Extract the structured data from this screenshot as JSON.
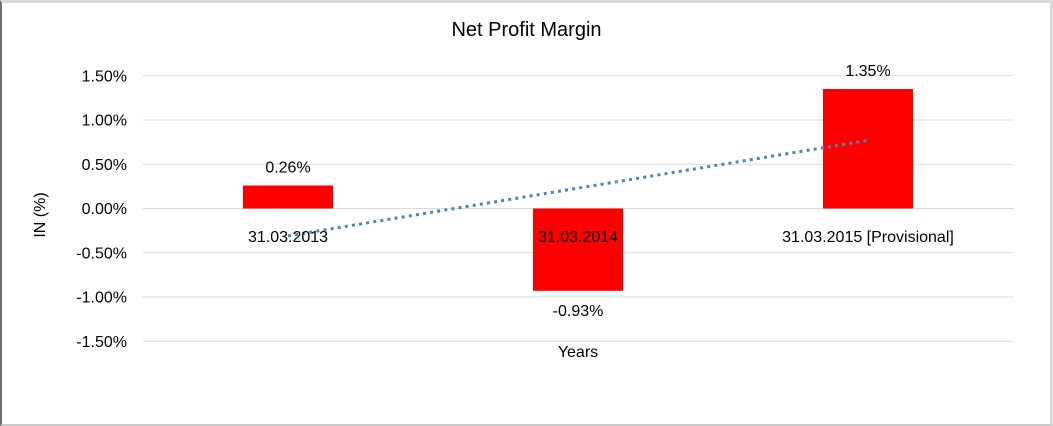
{
  "chart_data": {
    "type": "bar",
    "title": "Net Profit Margin",
    "categories": [
      "31.03.2013",
      "31.03.2014",
      "31.03.2015 [Provisional]"
    ],
    "values": [
      0.26,
      -0.93,
      1.35
    ],
    "data_labels": [
      "0.26%",
      "-0.93%",
      "1.35%"
    ],
    "xlabel": "Years",
    "ylabel": "IN (%)",
    "ylim": [
      -1.5,
      1.5
    ],
    "yticks": [
      {
        "value": 1.5,
        "label": "1.50%"
      },
      {
        "value": 1.0,
        "label": "1.00%"
      },
      {
        "value": 0.5,
        "label": "0.50%"
      },
      {
        "value": 0.0,
        "label": "0.00%"
      },
      {
        "value": -0.5,
        "label": "-0.50%"
      },
      {
        "value": -1.0,
        "label": "-1.00%"
      },
      {
        "value": -1.5,
        "label": "-1.50%"
      }
    ],
    "grid": true,
    "legend": "none",
    "bar_color": "#ff0000",
    "gridline_color": "#d9d9d9",
    "trendline": {
      "type": "linear",
      "style": "dotted",
      "color": "#4f81bd",
      "start_value": -0.31,
      "end_value": 0.77
    }
  }
}
